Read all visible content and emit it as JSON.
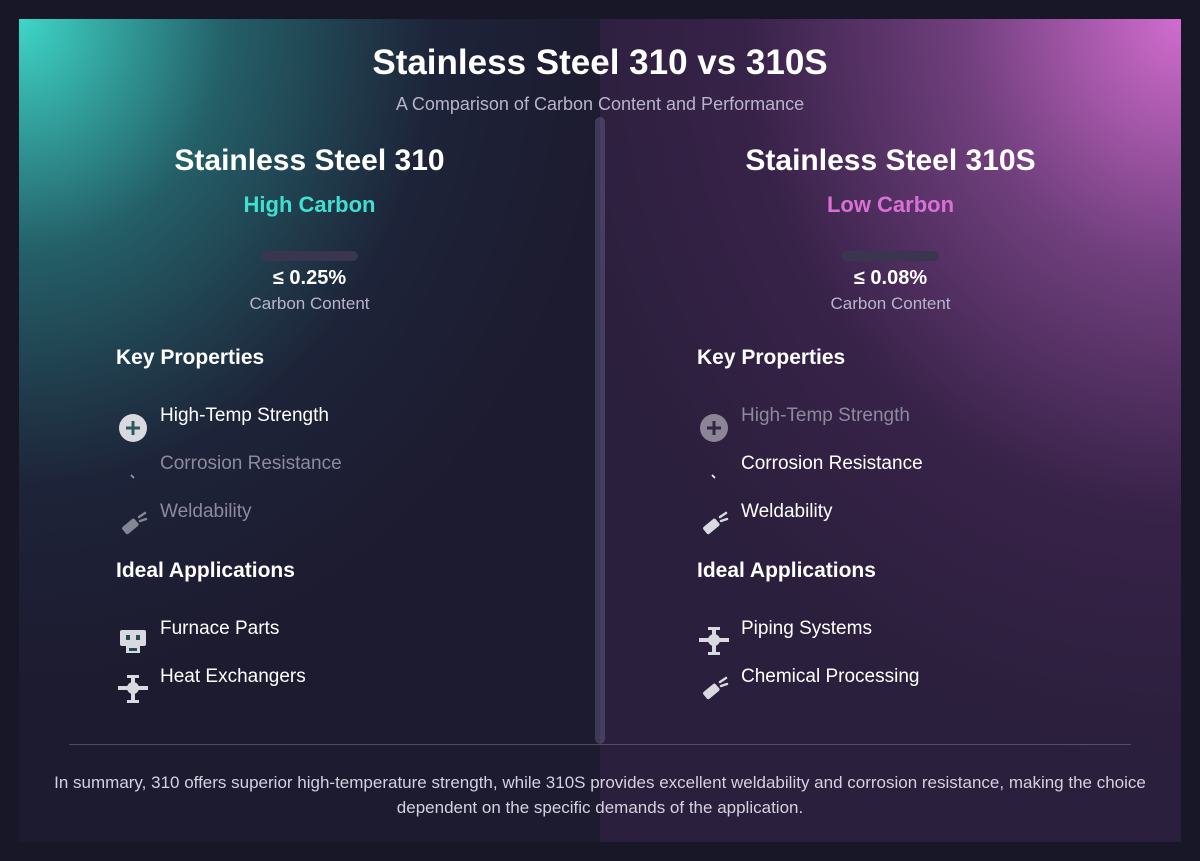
{
  "title": "Stainless Steel 310 vs 310S",
  "subtitle": "A Comparison of Carbon Content and Performance",
  "colors": {
    "left_accent": "#40e0d0",
    "right_accent": "#da70d6",
    "background": "#1d1b30"
  },
  "left": {
    "title": "Stainless Steel 310",
    "tag": "High Carbon",
    "carbon_value": "≤ 0.25%",
    "carbon_label": "Carbon Content",
    "properties_heading": "Key Properties",
    "properties": [
      {
        "label": "High-Temp Strength",
        "icon": "plus-circle-icon",
        "highlighted": true
      },
      {
        "label": "Corrosion Resistance",
        "icon": "tiny-dash-icon",
        "highlighted": false
      },
      {
        "label": "Weldability",
        "icon": "welding-torch-icon",
        "highlighted": false
      }
    ],
    "applications_heading": "Ideal Applications",
    "applications": [
      {
        "label": "Furnace Parts",
        "icon": "furnace-icon"
      },
      {
        "label": "Heat Exchangers",
        "icon": "valve-pipe-icon"
      }
    ]
  },
  "right": {
    "title": "Stainless Steel 310S",
    "tag": "Low Carbon",
    "carbon_value": "≤ 0.08%",
    "carbon_label": "Carbon Content",
    "properties_heading": "Key Properties",
    "properties": [
      {
        "label": "High-Temp Strength",
        "icon": "plus-circle-icon",
        "highlighted": false
      },
      {
        "label": "Corrosion Resistance",
        "icon": "tiny-dash-icon",
        "highlighted": true
      },
      {
        "label": "Weldability",
        "icon": "welding-torch-icon",
        "highlighted": true
      }
    ],
    "applications_heading": "Ideal Applications",
    "applications": [
      {
        "label": "Piping Systems",
        "icon": "valve-pipe-icon"
      },
      {
        "label": "Chemical Processing",
        "icon": "welding-torch-icon"
      }
    ]
  },
  "summary": "In summary, 310 offers superior high-temperature strength, while 310S provides excellent weldability and corrosion resistance, making the choice dependent on the specific demands of the application."
}
